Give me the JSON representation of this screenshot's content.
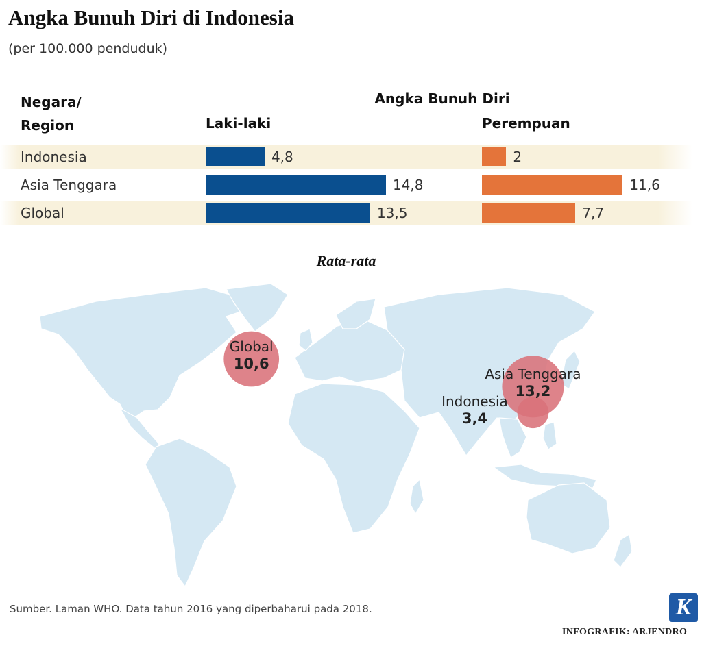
{
  "title": "Angka Bunuh Diri di Indonesia",
  "subtitle": "(per 100.000 penduduk)",
  "chart_data": [
    {
      "type": "bar",
      "orientation": "horizontal",
      "title": "Angka Bunuh Diri",
      "category_header_line1": "Negara/",
      "category_header_line2": "Region",
      "categories": [
        "Indonesia",
        "Asia Tenggara",
        "Global"
      ],
      "series": [
        {
          "name": "Laki-laki",
          "values": [
            4.8,
            14.8,
            13.5
          ],
          "labels": [
            "4,8",
            "14,8",
            "13,5"
          ],
          "color": "#0a4f8f"
        },
        {
          "name": "Perempuan",
          "values": [
            2,
            11.6,
            7.7
          ],
          "labels": [
            "2",
            "11,6",
            "7,7"
          ],
          "color": "#e4743a"
        }
      ],
      "xlim": [
        0,
        16
      ],
      "row_shading": "alternating"
    },
    {
      "type": "scatter",
      "subtype": "bubble-map",
      "title": "Rata-rata",
      "points": [
        {
          "name": "Global",
          "value": 10.6,
          "label": "10,6",
          "lon": -42,
          "lat": 27
        },
        {
          "name": "Asia Tenggara",
          "value": 13.2,
          "label": "13,2",
          "lon": 113,
          "lat": 10
        },
        {
          "name": "Indonesia",
          "value": 3.4,
          "label": "3,4",
          "lon": 113,
          "lat": -6
        }
      ],
      "bubble_color": "#d9727a",
      "land_color": "#d5e8f3"
    }
  ],
  "source": "Sumber. Laman WHO. Data tahun 2016 yang diperbaharui pada 2018.",
  "logo_letter": "K",
  "credit": "INFOGRAFIK: ARJENDRO"
}
